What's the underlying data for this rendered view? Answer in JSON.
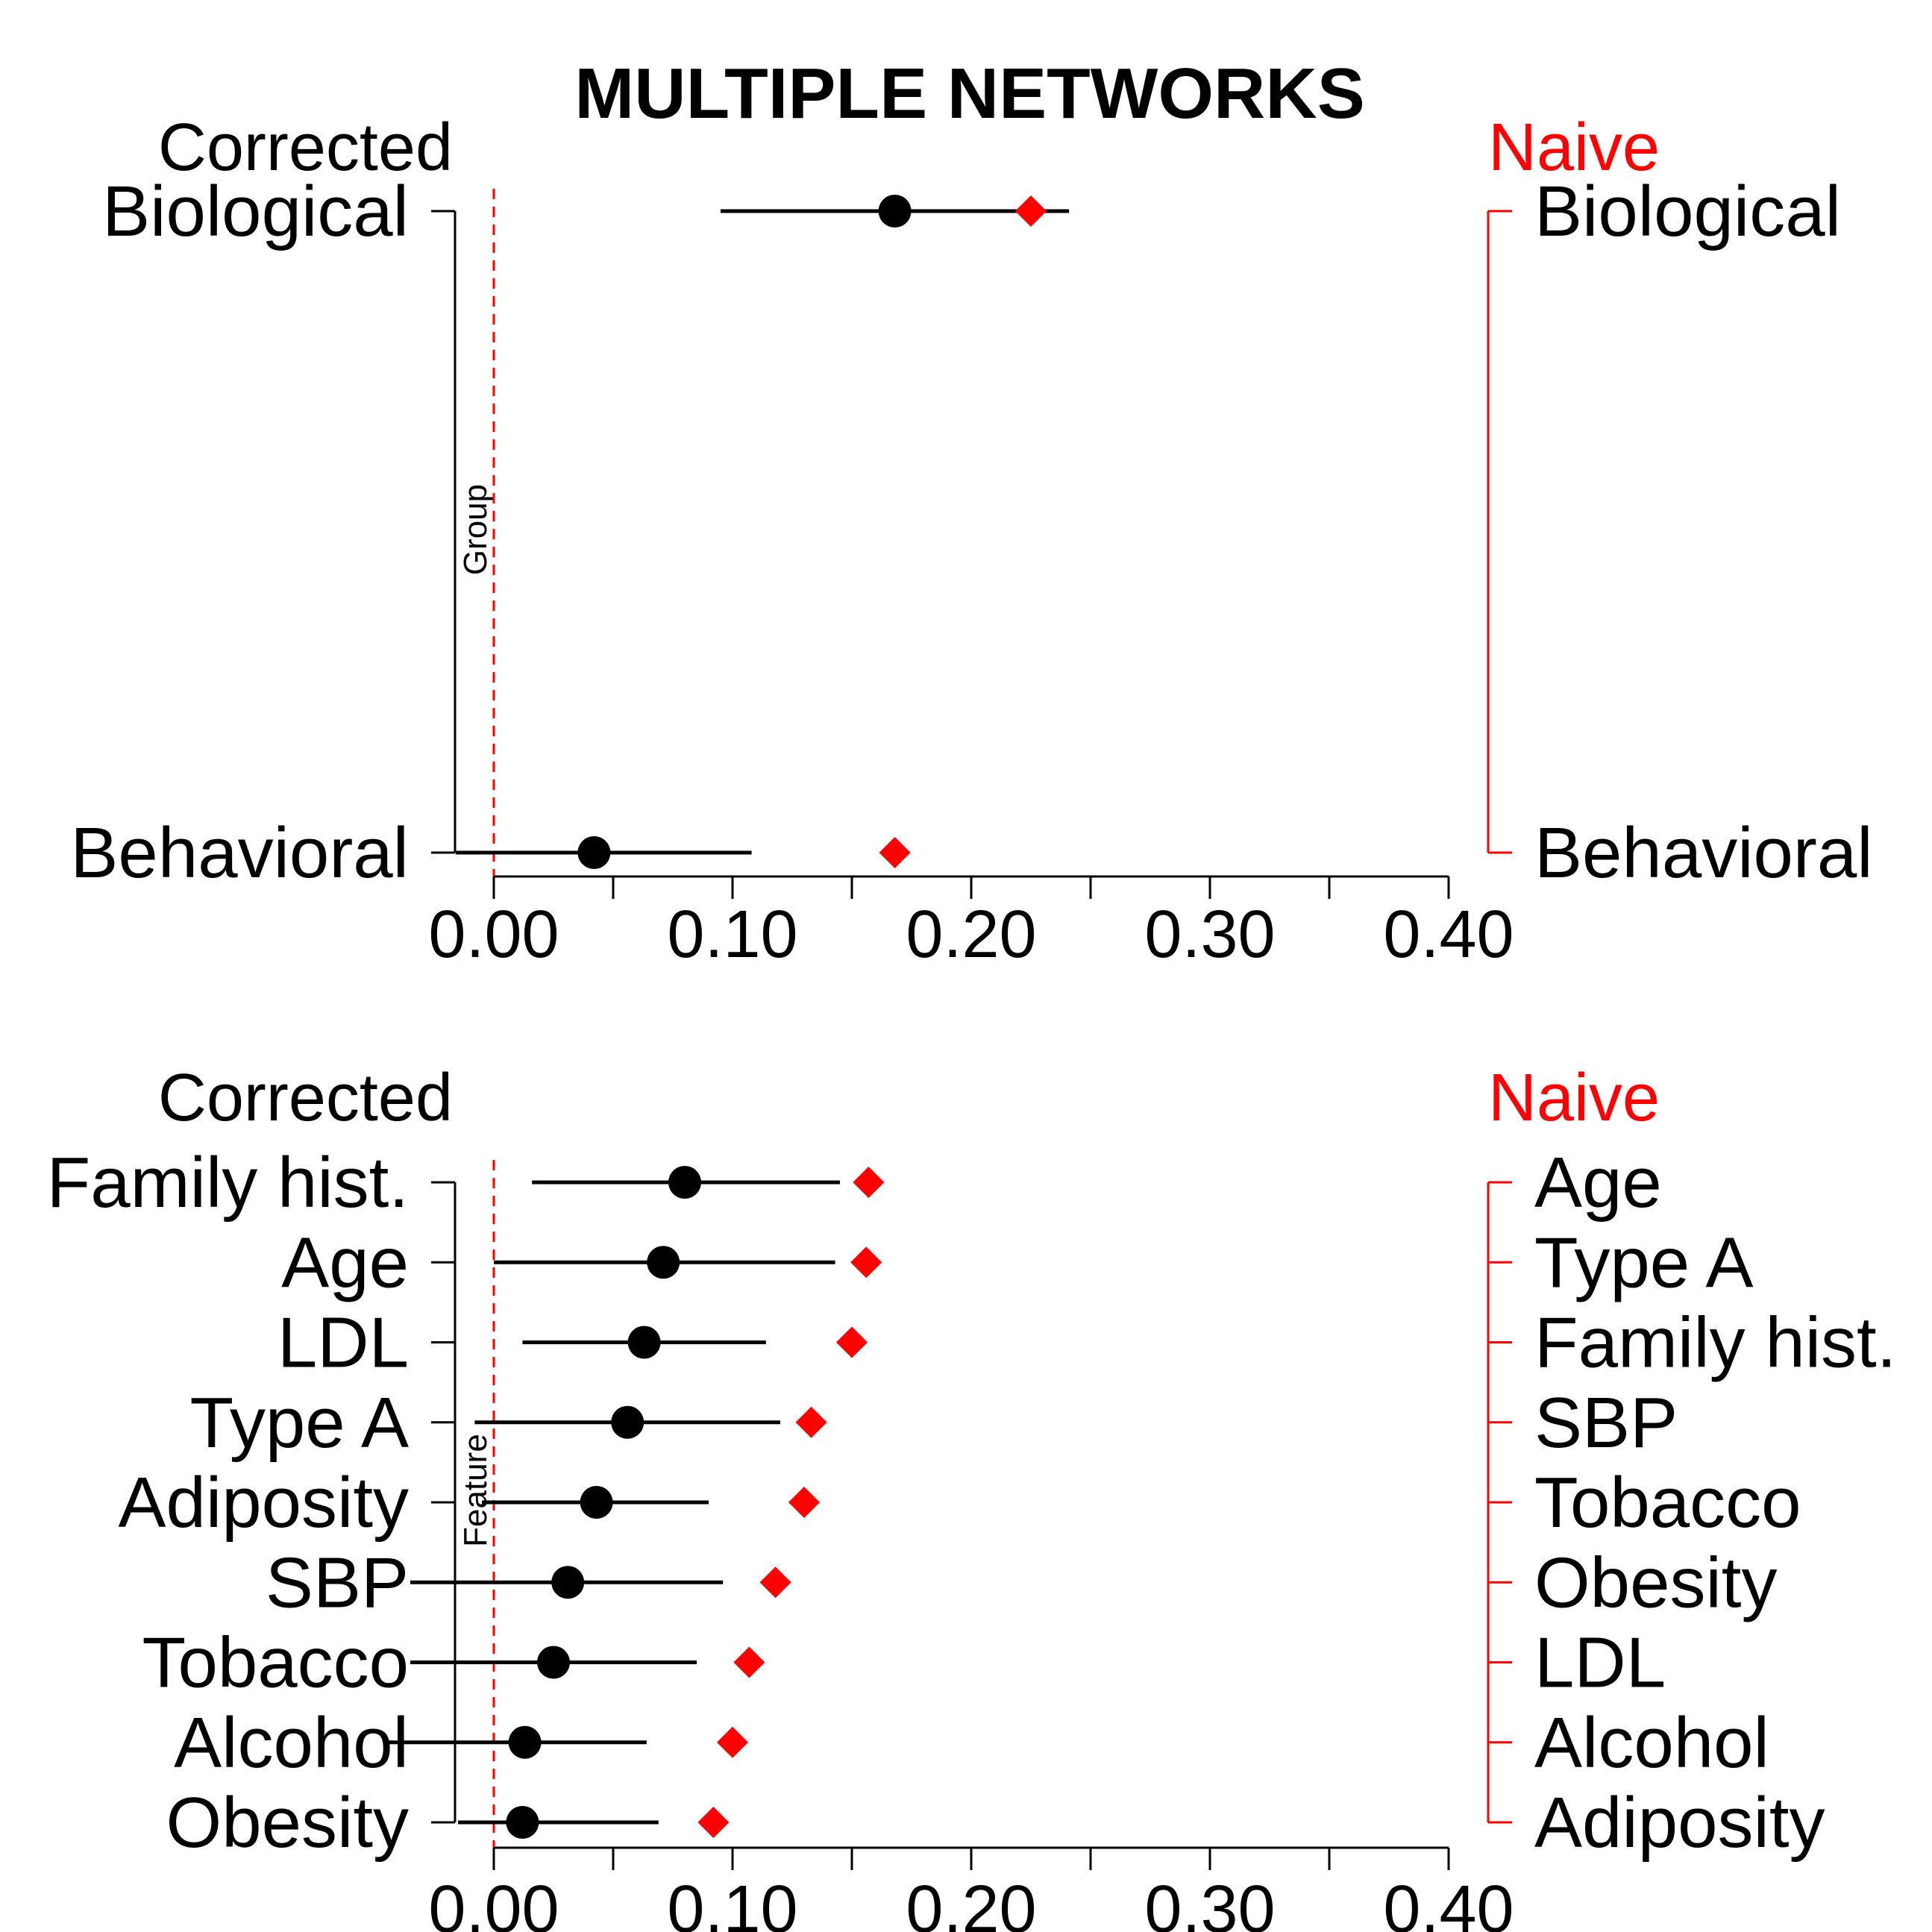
{
  "title": "MULTIPLE NETWORKS",
  "colors": {
    "corrected": "#000000",
    "naive": "#ff0000",
    "reference_line": "#ff0000"
  },
  "chart_data": [
    {
      "type": "dot-interval",
      "panel": "top",
      "left_header": "Corrected",
      "right_header": "Naive",
      "vertical_label": "Group",
      "xlim": [
        0.0,
        0.4
      ],
      "xticks": [
        0.0,
        0.1,
        0.2,
        0.3,
        0.4
      ],
      "xtick_labels": [
        "0.00",
        "0.10",
        "0.20",
        "0.30",
        "0.40"
      ],
      "minor_ticks": [
        0.05,
        0.15,
        0.25,
        0.35
      ],
      "reference_line": 0,
      "corrected_labels": [
        "Biological",
        "Behavioral"
      ],
      "naive_labels": [
        "Biological",
        "Behavioral"
      ],
      "corrected": [
        {
          "label": "Biological",
          "estimate": 0.168,
          "lower": 0.095,
          "upper": 0.241
        },
        {
          "label": "Behavioral",
          "estimate": 0.042,
          "lower": -0.016,
          "upper": 0.108
        }
      ],
      "naive": [
        {
          "label": "Biological",
          "estimate": 0.225
        },
        {
          "label": "Behavioral",
          "estimate": 0.168
        }
      ]
    },
    {
      "type": "dot-interval",
      "panel": "bottom",
      "left_header": "Corrected",
      "right_header": "Naive",
      "vertical_label": "Feature",
      "xlim": [
        0.0,
        0.4
      ],
      "xticks": [
        0.0,
        0.1,
        0.2,
        0.3,
        0.4
      ],
      "xtick_labels": [
        "0.00",
        "0.10",
        "0.20",
        "0.30",
        "0.40"
      ],
      "minor_ticks": [
        0.05,
        0.15,
        0.25,
        0.35
      ],
      "reference_line": 0,
      "corrected_labels": [
        "Family hist.",
        "Age",
        "LDL",
        "Type A",
        "Adiposity",
        "SBP",
        "Tobacco",
        "Alcohol",
        "Obesity"
      ],
      "naive_labels": [
        "Age",
        "Type A",
        "Family hist.",
        "SBP",
        "Tobacco",
        "Obesity",
        "LDL",
        "Alcohol",
        "Adiposity"
      ],
      "corrected": [
        {
          "label": "Family hist.",
          "estimate": 0.08,
          "lower": 0.016,
          "upper": 0.145
        },
        {
          "label": "Age",
          "estimate": 0.071,
          "lower": 0.0,
          "upper": 0.143
        },
        {
          "label": "LDL",
          "estimate": 0.063,
          "lower": 0.012,
          "upper": 0.114
        },
        {
          "label": "Type A",
          "estimate": 0.056,
          "lower": -0.008,
          "upper": 0.12
        },
        {
          "label": "Adiposity",
          "estimate": 0.043,
          "lower": -0.005,
          "upper": 0.09
        },
        {
          "label": "SBP",
          "estimate": 0.031,
          "lower": -0.035,
          "upper": 0.096
        },
        {
          "label": "Tobacco",
          "estimate": 0.025,
          "lower": -0.035,
          "upper": 0.085
        },
        {
          "label": "Alcohol",
          "estimate": 0.013,
          "lower": -0.045,
          "upper": 0.064
        },
        {
          "label": "Obesity",
          "estimate": 0.012,
          "lower": -0.015,
          "upper": 0.069
        }
      ],
      "naive": [
        {
          "label": "Family hist.",
          "estimate": 0.157
        },
        {
          "label": "Age",
          "estimate": 0.156
        },
        {
          "label": "LDL",
          "estimate": 0.15
        },
        {
          "label": "Type A",
          "estimate": 0.133
        },
        {
          "label": "Adiposity",
          "estimate": 0.13
        },
        {
          "label": "SBP",
          "estimate": 0.118
        },
        {
          "label": "Tobacco",
          "estimate": 0.107
        },
        {
          "label": "Alcohol",
          "estimate": 0.1
        },
        {
          "label": "Obesity",
          "estimate": 0.092
        }
      ]
    }
  ]
}
